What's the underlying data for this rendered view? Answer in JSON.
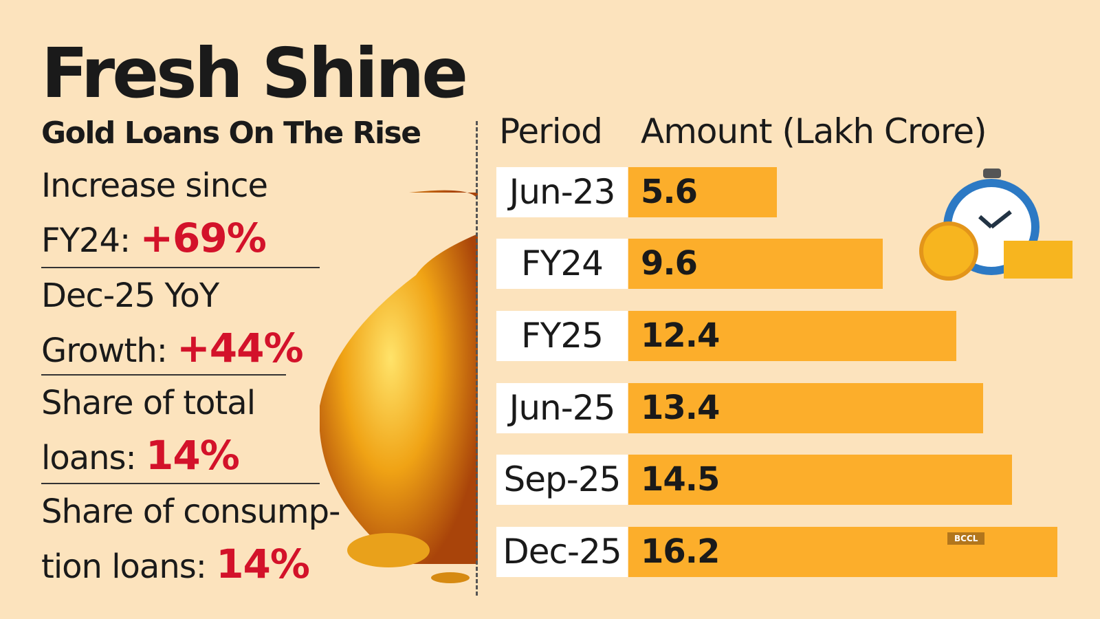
{
  "title": "Fresh Shine",
  "subtitle": "Gold Loans On The Rise",
  "stats": [
    {
      "line1": "Increase since",
      "line2": "FY24: ",
      "value": "+69%"
    },
    {
      "line1": "Dec-25 YoY",
      "line2": "Growth: ",
      "value": "+44%"
    },
    {
      "line1": "Share of total",
      "line2": "loans: ",
      "value": "14%"
    },
    {
      "line1": "Share of consump-",
      "line2": "tion loans: ",
      "value": "14%"
    }
  ],
  "credit": "BCCL",
  "colors": {
    "background": "#fce3bd",
    "bar": "#fcae2b",
    "highlight": "#d3122a"
  },
  "chart_data": {
    "type": "bar",
    "orientation": "horizontal",
    "headers": [
      "Period",
      "Amount (Lakh Crore)"
    ],
    "categories": [
      "Jun-23",
      "FY24",
      "FY25",
      "Jun-25",
      "Sep-25",
      "Dec-25"
    ],
    "values": [
      5.6,
      9.6,
      12.4,
      13.4,
      14.5,
      16.2
    ],
    "value_labels": [
      "5.6",
      "9.6",
      "12.4",
      "13.4",
      "14.5",
      "16.2"
    ]
  }
}
